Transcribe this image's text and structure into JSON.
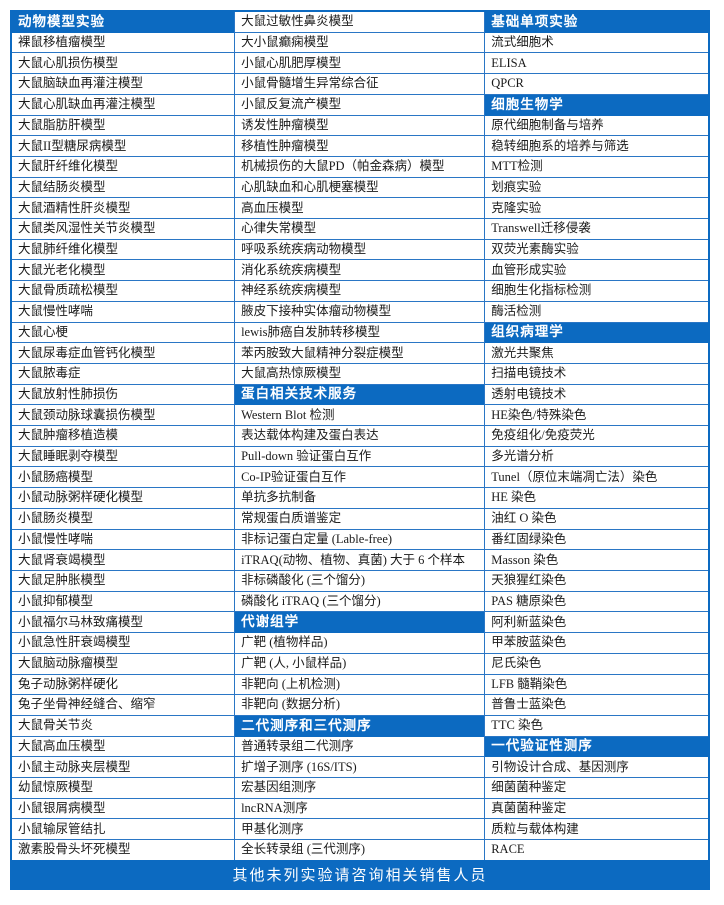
{
  "colors": {
    "header_blue": "#0c6ac1",
    "cell_border_blue": "#2a76c5",
    "body_text": "#1a1a1a",
    "header_text": "#ffffff",
    "cell_background": "#ffffff"
  },
  "footer": {
    "text": "其他未列实验请咨询相关销售人员"
  },
  "table": {
    "columns": [
      {
        "name": "column-animal-models",
        "rows": [
          {
            "text": "动物模型实验",
            "header": true
          },
          "裸鼠移植瘤模型",
          "大鼠心肌损伤模型",
          "大鼠脑缺血再灌注模型",
          "大鼠心肌缺血再灌注模型",
          "大鼠脂肪肝模型",
          "大鼠II型糖尿病模型",
          "大鼠肝纤维化模型",
          "大鼠结肠炎模型",
          "大鼠酒精性肝炎模型",
          "大鼠类风湿性关节炎模型",
          "大鼠肺纤维化模型",
          "大鼠光老化模型",
          "大鼠骨质疏松模型",
          "大鼠慢性哮喘",
          "大鼠心梗",
          "大鼠尿毒症血管钙化模型",
          "大鼠脓毒症",
          "大鼠放射性肺损伤",
          "大鼠颈动脉球囊损伤模型",
          "大鼠肿瘤移植造模",
          "大鼠睡眠剥夺模型",
          "小鼠肠癌模型",
          "小鼠动脉粥样硬化模型",
          "小鼠肠炎模型",
          "小鼠慢性哮喘",
          "大鼠肾衰竭模型",
          "大鼠足肿胀模型",
          "小鼠抑郁模型",
          "小鼠福尔马林致痛模型",
          "小鼠急性肝衰竭模型",
          "大鼠脑动脉瘤模型",
          "兔子动脉粥样硬化",
          "兔子坐骨神经缝合、缩窄",
          "大鼠骨关节炎",
          "大鼠高血压模型",
          "小鼠主动脉夹层模型",
          "幼鼠惊厥模型",
          "小鼠银屑病模型",
          "小鼠输尿管结扎",
          "激素股骨头坏死模型"
        ]
      },
      {
        "name": "column-models-protein-metabolomics-sequencing",
        "rows": [
          "大鼠过敏性鼻炎模型",
          "大小鼠癫痫模型",
          "小鼠心肌肥厚模型",
          "小鼠骨髓增生异常综合征",
          "小鼠反复流产模型",
          "诱发性肿瘤模型",
          "移植性肿瘤模型",
          "机械损伤的大鼠PD（帕金森病）模型",
          "心肌缺血和心肌梗塞模型",
          "高血压模型",
          "心律失常模型",
          "呼吸系统疾病动物模型",
          "消化系统疾病模型",
          "神经系统疾病模型",
          "腋皮下接种实体瘤动物模型",
          "lewis肺癌自发肺转移模型",
          "苯丙胺致大鼠精神分裂症模型",
          "大鼠高热惊厥模型",
          {
            "text": "蛋白相关技术服务",
            "header": true
          },
          "Western Blot 检测",
          "表达载体构建及蛋白表达",
          "Pull-down 验证蛋白互作",
          "Co-IP验证蛋白互作",
          "单抗多抗制备",
          "常规蛋白质谱鉴定",
          "非标记蛋白定量 (Lable-free)",
          "iTRAQ(动物、植物、真菌) 大于 6 个样本",
          "非标磷酸化 (三个馏分)",
          "磷酸化 iTRAQ (三个馏分)",
          {
            "text": "代谢组学",
            "header": true
          },
          "广靶 (植物样品)",
          "广靶 (人, 小鼠样品)",
          "非靶向 (上机检测)",
          "非靶向 (数据分析)",
          {
            "text": "二代测序和三代测序",
            "header": true
          },
          "普通转录组二代测序",
          "扩增子测序 (16S/ITS)",
          "宏基因组测序",
          "lncRNA测序",
          "甲基化测序",
          "全长转录组 (三代测序)"
        ]
      },
      {
        "name": "column-basic-cell-pathology-sanger",
        "rows": [
          {
            "text": "基础单项实验",
            "header": true
          },
          "流式细胞术",
          "ELISA",
          "QPCR",
          {
            "text": "细胞生物学",
            "header": true
          },
          "原代细胞制备与培养",
          "稳转细胞系的培养与筛选",
          "MTT检测",
          "划痕实验",
          "克隆实验",
          "Transwell迁移侵袭",
          "双荧光素酶实验",
          "血管形成实验",
          "细胞生化指标检测",
          "酶活检测",
          {
            "text": "组织病理学",
            "header": true
          },
          "激光共聚焦",
          "扫描电镜技术",
          "透射电镜技术",
          "HE染色/特殊染色",
          "免疫组化/免疫荧光",
          "多光谱分析",
          "Tunel（原位末端凋亡法）染色",
          "HE 染色",
          "油红 O 染色",
          "番红固绿染色",
          "Masson 染色",
          "天狼猩红染色",
          "PAS 糖原染色",
          "阿利新蓝染色",
          "甲苯胺蓝染色",
          "尼氏染色",
          "LFB 髓鞘染色",
          "普鲁士蓝染色",
          "TTC 染色",
          {
            "text": "一代验证性测序",
            "header": true
          },
          "引物设计合成、基因测序",
          "细菌菌种鉴定",
          "真菌菌种鉴定",
          "质粒与载体构建",
          "RACE"
        ]
      }
    ]
  }
}
